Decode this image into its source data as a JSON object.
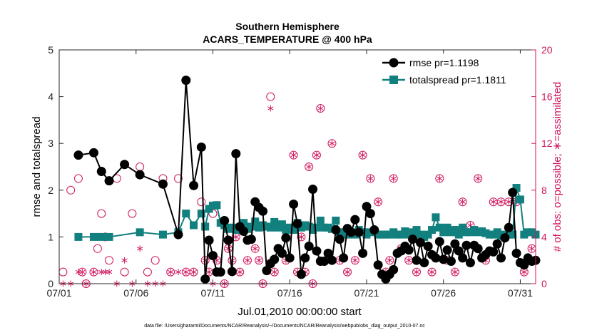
{
  "chart_data": {
    "type": "line",
    "title": "Southern Hemisphere",
    "subtitle": "ACARS_TEMPERATURE @ 400 hPa",
    "xlabel": "Jul.01,2010 00:00:00 start",
    "ylabel": "rmse and totalspread",
    "y2label": "# of obs: o=possible; ∗=assimilated",
    "footer": "data file: /Users/gharamti/Documents/NCAR/Reanalysis/~/Documents/NCAR/Reanalysis/webpub/obs_diag_output_2010-07.nc",
    "xlim": [
      1,
      32
    ],
    "ylim": [
      0,
      5
    ],
    "y2lim": [
      0,
      20
    ],
    "grid": false,
    "legend_position": "top-right",
    "x_ticks": [
      {
        "value": 1,
        "label": "07/01"
      },
      {
        "value": 6,
        "label": "07/06"
      },
      {
        "value": 11,
        "label": "07/11"
      },
      {
        "value": 16,
        "label": "07/16"
      },
      {
        "value": 21,
        "label": "07/21"
      },
      {
        "value": 26,
        "label": "07/26"
      },
      {
        "value": 31,
        "label": "07/31"
      }
    ],
    "y_ticks": [
      0,
      1,
      2,
      3,
      4,
      5
    ],
    "y2_ticks": [
      0,
      4,
      8,
      12,
      16,
      20
    ],
    "colors": {
      "rmse": "#000000",
      "spread": "#12807f",
      "obs": "#d0145d"
    },
    "series": [
      {
        "name": "rmse pr=1.1198",
        "x": [
          2.25,
          3.25,
          3.75,
          4.25,
          5.25,
          6.25,
          7.75,
          8.75,
          9.25,
          9.75,
          10.25,
          10.5,
          10.75,
          11.0,
          11.25,
          11.5,
          11.75,
          12.0,
          12.25,
          12.5,
          12.75,
          13.0,
          13.25,
          13.5,
          13.75,
          14.0,
          14.25,
          14.5,
          14.75,
          15.0,
          15.25,
          15.5,
          15.75,
          16.0,
          16.25,
          16.5,
          16.75,
          17.0,
          17.25,
          17.5,
          17.75,
          18.0,
          18.25,
          18.5,
          18.75,
          19.0,
          19.25,
          19.5,
          19.75,
          20.0,
          20.25,
          20.5,
          20.75,
          21.0,
          21.25,
          21.5,
          21.75,
          22.0,
          22.25,
          22.5,
          22.75,
          23.0,
          23.25,
          23.5,
          23.75,
          24.0,
          24.25,
          24.5,
          24.75,
          25.0,
          25.25,
          25.5,
          25.75,
          26.0,
          26.25,
          26.5,
          26.75,
          27.0,
          27.25,
          27.5,
          27.75,
          28.0,
          28.25,
          28.5,
          28.75,
          29.0,
          29.25,
          29.5,
          29.75,
          30.0,
          30.25,
          30.5,
          30.75,
          31.0,
          31.25,
          31.5,
          31.75,
          32.0
        ],
        "y": [
          2.75,
          2.8,
          2.4,
          2.2,
          2.55,
          2.33,
          2.13,
          1.05,
          4.35,
          2.1,
          2.92,
          0.1,
          0.93,
          0.6,
          0.25,
          0.25,
          1.35,
          0.93,
          0.26,
          2.78,
          1.22,
          1.12,
          0.93,
          0.95,
          1.75,
          1.63,
          1.55,
          0.28,
          0.43,
          0.52,
          0.75,
          0.65,
          0.98,
          0.55,
          1.7,
          1.28,
          0.2,
          0.55,
          0.8,
          2.02,
          0.7,
          0.48,
          0.48,
          0.65,
          0.5,
          1.15,
          0.95,
          0.55,
          1.18,
          1.1,
          1.37,
          1.1,
          0.65,
          1.65,
          1.5,
          1.15,
          0.4,
          0.2,
          0.1,
          0.2,
          0.3,
          0.65,
          0.7,
          0.8,
          0.72,
          0.95,
          0.5,
          0.88,
          0.45,
          0.8,
          0.62,
          0.55,
          0.9,
          0.52,
          0.72,
          0.48,
          0.85,
          0.7,
          0.55,
          0.82,
          0.45,
          0.82,
          0.75,
          0.55,
          0.62,
          0.7,
          0.68,
          0.85,
          0.55,
          0.98,
          1.2,
          1.95,
          0.65,
          0.45,
          0.4,
          0.55,
          0.48,
          0.5
        ],
        "marker": "filled-circle"
      },
      {
        "name": "totalspread pr=1.1811",
        "x": [
          2.25,
          3.25,
          3.75,
          4.25,
          6.25,
          7.75,
          8.75,
          9.25,
          9.75,
          10.25,
          10.5,
          10.75,
          11.0,
          11.25,
          11.5,
          11.75,
          12.0,
          12.25,
          12.5,
          12.75,
          13.0,
          13.25,
          13.5,
          13.75,
          14.0,
          14.25,
          14.5,
          14.75,
          15.0,
          15.25,
          15.5,
          15.75,
          16.0,
          16.25,
          16.5,
          16.75,
          17.0,
          17.25,
          17.5,
          17.75,
          18.0,
          18.25,
          18.5,
          18.75,
          19.0,
          19.25,
          19.5,
          19.75,
          20.0,
          20.25,
          20.5,
          20.75,
          21.0,
          21.25,
          21.5,
          21.75,
          22.0,
          22.25,
          22.5,
          22.75,
          23.0,
          23.25,
          23.5,
          23.75,
          24.0,
          24.25,
          24.5,
          24.75,
          25.0,
          25.25,
          25.5,
          25.75,
          26.0,
          26.25,
          26.5,
          26.75,
          27.0,
          27.25,
          27.5,
          27.75,
          28.0,
          28.25,
          28.5,
          28.75,
          29.0,
          29.25,
          29.5,
          29.75,
          30.0,
          30.25,
          30.5,
          30.75,
          31.0,
          31.25,
          31.5,
          31.75,
          32.0
        ],
        "y": [
          1.0,
          1.0,
          1.0,
          1.0,
          1.1,
          1.05,
          1.1,
          1.5,
          1.25,
          1.5,
          1.22,
          1.6,
          1.67,
          1.68,
          1.3,
          1.25,
          1.17,
          1.2,
          1.15,
          1.2,
          1.3,
          1.17,
          1.22,
          1.33,
          1.2,
          1.25,
          1.22,
          1.2,
          1.32,
          1.2,
          1.27,
          1.15,
          1.2,
          1.15,
          1.3,
          1.2,
          1.25,
          1.22,
          1.15,
          1.2,
          1.35,
          1.2,
          1.2,
          1.17,
          1.35,
          1.1,
          1.1,
          1.05,
          1.1,
          1.05,
          1.15,
          1.1,
          1.05,
          1.1,
          1.12,
          1.05,
          1.05,
          1.05,
          1.05,
          1.1,
          1.05,
          1.05,
          1.12,
          1.05,
          1.1,
          1.15,
          1.05,
          1.0,
          1.05,
          1.15,
          1.42,
          1.2,
          1.1,
          1.2,
          1.1,
          1.15,
          1.05,
          1.2,
          1.1,
          1.1,
          1.15,
          1.1,
          1.12,
          1.08,
          1.05,
          1.05,
          1.1,
          1.02,
          1.05,
          1.05,
          1.05,
          2.05,
          1.8,
          1.05,
          1.1,
          1.1,
          1.05
        ],
        "marker": "filled-square"
      },
      {
        "name": "# of obs possible",
        "axis": "right",
        "x": [
          1.25,
          1.75,
          2.25,
          2.5,
          2.75,
          3.25,
          3.5,
          3.75,
          4.0,
          4.25,
          4.75,
          5.25,
          5.75,
          6.25,
          6.75,
          7.25,
          7.75,
          8.25,
          8.75,
          9.25,
          9.75,
          10.25,
          10.5,
          10.75,
          11.0,
          11.25,
          11.5,
          11.75,
          12.0,
          12.25,
          12.5,
          12.75,
          13.25,
          13.75,
          14.0,
          14.25,
          14.75,
          15.0,
          15.25,
          15.75,
          16.25,
          16.5,
          16.75,
          17.0,
          17.25,
          17.5,
          17.75,
          18.0,
          18.75,
          19.25,
          19.75,
          20.25,
          20.75,
          21.25,
          21.75,
          22.25,
          22.5,
          22.75,
          23.25,
          23.75,
          24.25,
          25.25,
          25.75,
          26.25,
          26.75,
          27.25,
          27.75,
          28.25,
          28.75,
          29.25,
          29.75,
          30.25,
          30.75,
          31.25,
          31.5,
          31.75
        ],
        "y": [
          1,
          8,
          9,
          1,
          0,
          1,
          3,
          6,
          4,
          2,
          9,
          1,
          6,
          10,
          1,
          2,
          9,
          1,
          9,
          1,
          1,
          7,
          2,
          1,
          6,
          2,
          1,
          0,
          3,
          2,
          4,
          1,
          2,
          3,
          2,
          0,
          16,
          1,
          5,
          2,
          11,
          1,
          4,
          1,
          10,
          0,
          11,
          15,
          12,
          2,
          1,
          2,
          11,
          9,
          7,
          1,
          2,
          9,
          3,
          2,
          1,
          1,
          9,
          2,
          1,
          7,
          5,
          9,
          2,
          7,
          7,
          7,
          7,
          1,
          2,
          3
        ],
        "marker": "open-circle"
      },
      {
        "name": "# of obs assimilated",
        "axis": "right",
        "x": [
          1.25,
          1.75,
          2.25,
          2.5,
          2.75,
          3.25,
          3.75,
          4.0,
          4.25,
          4.75,
          5.25,
          5.75,
          6.25,
          6.75,
          7.25,
          7.75,
          8.25,
          8.75,
          9.25,
          9.75,
          10.25,
          10.5,
          10.75,
          11.0,
          11.25,
          11.5,
          11.75,
          12.0,
          12.25,
          12.5,
          12.75,
          13.25,
          13.75,
          14.0,
          14.25,
          14.75,
          15.0,
          15.25,
          15.75,
          16.25,
          16.5,
          16.75,
          17.0,
          17.25,
          17.5,
          17.75,
          18.0,
          18.75,
          19.25,
          19.75,
          20.25,
          20.75,
          21.25,
          21.75,
          22.25,
          22.5,
          22.75,
          23.25,
          23.75,
          24.25,
          25.25,
          25.75,
          26.25,
          26.75,
          27.25,
          27.75,
          28.25,
          28.75,
          29.25,
          29.75,
          30.25,
          30.75,
          31.25,
          31.5,
          31.75
        ],
        "y": [
          0,
          0,
          1,
          1,
          0,
          1,
          1,
          1,
          1,
          0,
          2,
          0,
          3,
          0,
          0,
          0,
          1,
          1,
          1,
          1,
          6,
          2,
          1,
          0,
          2,
          1,
          0,
          3,
          2,
          4,
          1,
          2,
          3,
          2,
          0,
          15,
          1,
          5,
          2,
          11,
          1,
          4,
          1,
          10,
          0,
          11,
          15,
          12,
          2,
          1,
          2,
          11,
          9,
          7,
          1,
          2,
          9,
          3,
          2,
          1,
          1,
          9,
          2,
          1,
          7,
          5,
          9,
          2,
          7,
          7,
          7,
          7,
          1,
          2,
          3
        ],
        "marker": "asterisk"
      }
    ]
  }
}
